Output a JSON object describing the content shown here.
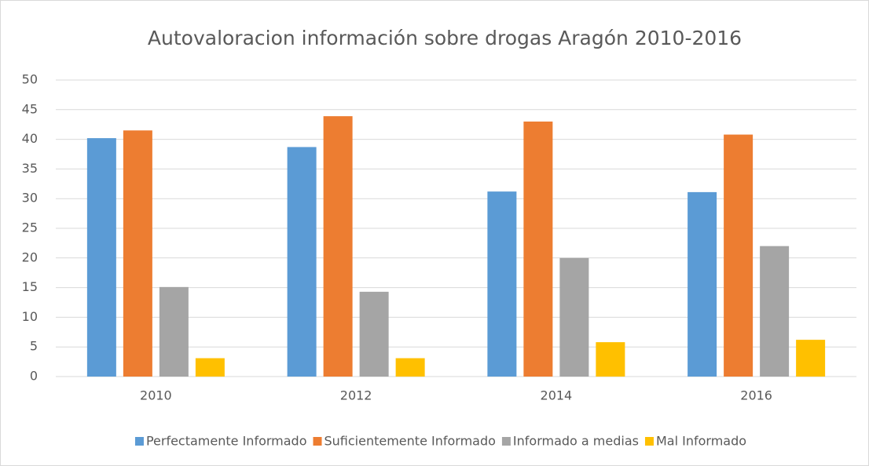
{
  "chart_data": {
    "type": "bar",
    "title": "Autovaloracion información sobre drogas Aragón 2010-2016",
    "categories": [
      "2010",
      "2012",
      "2014",
      "2016"
    ],
    "series": [
      {
        "name": "Perfectamente Informado",
        "color": "#5b9bd5",
        "values": [
          40.2,
          38.7,
          31.2,
          31.1
        ]
      },
      {
        "name": "Suficientemente Informado",
        "color": "#ed7d31",
        "values": [
          41.5,
          43.9,
          43.0,
          40.8
        ]
      },
      {
        "name": "Informado a medias",
        "color": "#a5a5a5",
        "values": [
          15.1,
          14.3,
          20.0,
          22.0
        ]
      },
      {
        "name": "Mal Informado",
        "color": "#ffc000",
        "values": [
          3.1,
          3.1,
          5.8,
          6.2
        ]
      }
    ],
    "ylim": [
      0,
      50
    ],
    "yticks": [
      0,
      5,
      10,
      15,
      20,
      25,
      30,
      35,
      40,
      45,
      50
    ],
    "grid": true,
    "legend": "bottom"
  }
}
